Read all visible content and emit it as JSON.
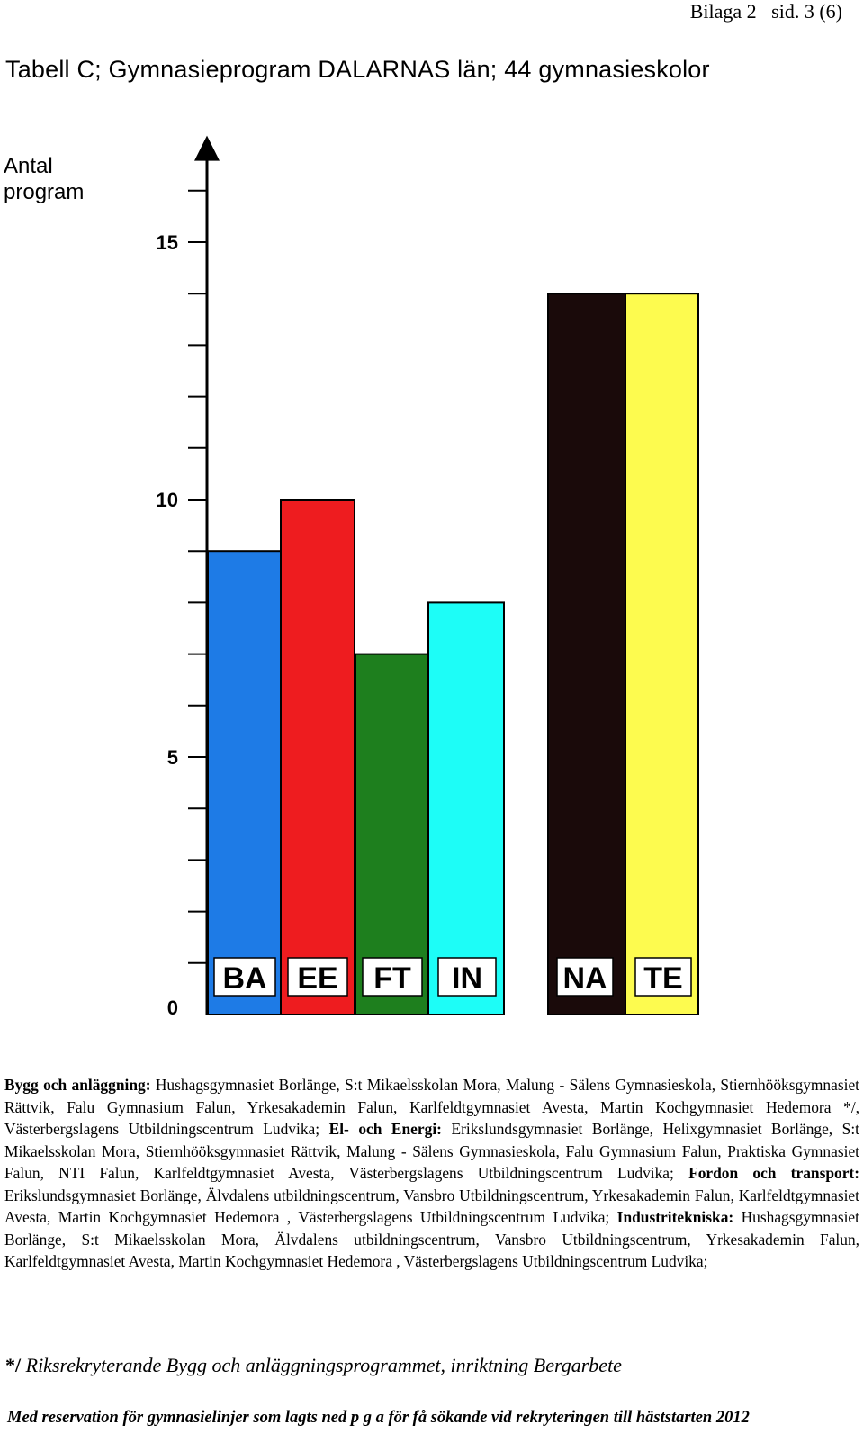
{
  "header": {
    "text": "Bilaga 2   sid. 3 (6)"
  },
  "title": "Tabell  C;  Gymnasieprogram DALARNAS län; 44 gymnasieskolor",
  "ylabel": {
    "line1": "Antal",
    "line2": "program"
  },
  "chart_data": {
    "type": "bar",
    "categories": [
      "BA",
      "EE",
      "FT",
      "IN",
      "NA",
      "TE"
    ],
    "values": [
      9,
      10,
      7,
      8,
      14,
      14
    ],
    "colors": [
      "#1e7be6",
      "#ee1c1f",
      "#1e7f1e",
      "#1dfdf7",
      "#1a0a0a",
      "#fdfb4f"
    ],
    "ylim": [
      0,
      17
    ],
    "yticks_labeled": [
      0,
      5,
      10,
      15
    ],
    "ytick_labels": [
      "0",
      "5",
      "10",
      "15"
    ],
    "ytick_step": 1,
    "grid": false,
    "xlabel": "",
    "ylabel": "Antal program"
  },
  "description": [
    {
      "bold": "Bygg och anläggning:",
      "text": " Hushagsgymnasiet Borlänge, S:t Mikaelsskolan Mora, Malung - Sälens Gymnasieskola, Stiernhööksgymnasiet Rättvik, Falu Gymnasium Falun, Yrkesakademin Falun, Karlfeldtgymnasiet Avesta, Martin Kochgymnasiet Hedemora */, Västerbergslagens Utbildningscentrum Ludvika;"
    },
    {
      "bold": "El- och Energi:",
      "text": " Erikslundsgymnasiet Borlänge, Helixgymnasiet Borlänge, S:t Mikaelsskolan Mora, Stiernhööksgymnasiet Rättvik, Malung - Sälens Gymnasieskola, Falu Gymnasium Falun, Praktiska Gymnasiet Falun, NTI Falun, Karlfeldtgymnasiet Avesta, Västerbergslagens Utbildningscentrum Ludvika;"
    },
    {
      "bold": "Fordon och transport:",
      "text": " Erikslundsgymnasiet Borlänge, Älvdalens utbildningscentrum, Vansbro Utbildningscentrum, Yrkesakademin Falun, Karlfeldtgymnasiet Avesta, Martin Kochgymnasiet Hedemora , Västerbergslagens Utbildningscentrum Ludvika;"
    },
    {
      "bold": "Industritekniska:",
      "text": " Hushagsgymnasiet Borlänge, S:t Mikaelsskolan Mora, Älvdalens utbildningscentrum, Vansbro Utbildningscentrum, Yrkesakademin Falun, Karlfeldtgymnasiet Avesta, Martin Kochgymnasiet Hedemora , Västerbergslagens Utbildningscentrum Ludvika;"
    }
  ],
  "footnote": {
    "mark": "*/",
    "text": " Riksrekryterande Bygg och anläggningsprogrammet, inriktning Bergarbete"
  },
  "reservation": "Med reservation för gymnasielinjer som lagts ned p g a för få sökande vid rekryteringen till häststarten 2012"
}
